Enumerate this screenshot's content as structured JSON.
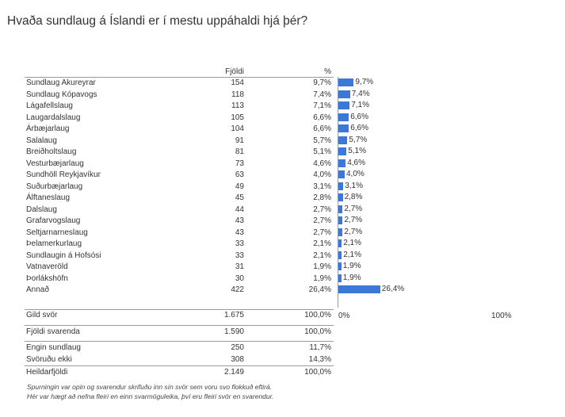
{
  "title": "Hvaða sundlaug á Íslandi er í mestu uppáhaldi hjá þér?",
  "headers": {
    "count": "Fjöldi",
    "pct": "%"
  },
  "rows": [
    {
      "label": "Sundlaug Akureyrar",
      "count": "154",
      "pct": "9,7%",
      "value": 9.7
    },
    {
      "label": "Sundlaug Kópavogs",
      "count": "118",
      "pct": "7,4%",
      "value": 7.4
    },
    {
      "label": "Lágafellslaug",
      "count": "113",
      "pct": "7,1%",
      "value": 7.1
    },
    {
      "label": "Laugardalslaug",
      "count": "105",
      "pct": "6,6%",
      "value": 6.6
    },
    {
      "label": "Árbæjarlaug",
      "count": "104",
      "pct": "6,6%",
      "value": 6.6
    },
    {
      "label": "Salalaug",
      "count": "91",
      "pct": "5,7%",
      "value": 5.7
    },
    {
      "label": "Breiðholtslaug",
      "count": "81",
      "pct": "5,1%",
      "value": 5.1
    },
    {
      "label": "Vesturbæjarlaug",
      "count": "73",
      "pct": "4,6%",
      "value": 4.6
    },
    {
      "label": "Sundhöll Reykjavíkur",
      "count": "63",
      "pct": "4,0%",
      "value": 4.0
    },
    {
      "label": "Suðurbæjarlaug",
      "count": "49",
      "pct": "3,1%",
      "value": 3.1
    },
    {
      "label": "Álftaneslaug",
      "count": "45",
      "pct": "2,8%",
      "value": 2.8
    },
    {
      "label": "Dalslaug",
      "count": "44",
      "pct": "2,7%",
      "value": 2.7
    },
    {
      "label": "Grafarvogslaug",
      "count": "43",
      "pct": "2,7%",
      "value": 2.7
    },
    {
      "label": "Seltjarnarneslaug",
      "count": "43",
      "pct": "2,7%",
      "value": 2.7
    },
    {
      "label": "Þelamerkurlaug",
      "count": "33",
      "pct": "2,1%",
      "value": 2.1
    },
    {
      "label": "Sundlaugin á Hofsósi",
      "count": "33",
      "pct": "2,1%",
      "value": 2.1
    },
    {
      "label": "Vatnaveröld",
      "count": "31",
      "pct": "1,9%",
      "value": 1.9
    },
    {
      "label": "Þorlákshöfn",
      "count": "30",
      "pct": "1,9%",
      "value": 1.9
    },
    {
      "label": "Annað",
      "count": "422",
      "pct": "26,4%",
      "value": 26.4
    }
  ],
  "totals": {
    "valid": {
      "label": "Gild svör",
      "count": "1.675",
      "pct": "100,0%"
    },
    "respondents": {
      "label": "Fjöldi svarenda",
      "count": "1.590",
      "pct": "100,0%"
    },
    "none": {
      "label": "Engin sundlaug",
      "count": "250",
      "pct": "11,7%"
    },
    "noanswer": {
      "label": "Svöruðu ekki",
      "count": "308",
      "pct": "14,3%"
    },
    "total": {
      "label": "Heildarfjöldi",
      "count": "2.149",
      "pct": "100,0%"
    }
  },
  "axis": {
    "min_label": "0%",
    "max_label": "100%"
  },
  "notes": [
    "Spurningin var opin og svarendur skrifuðu inn sín svör sem voru svo flokkuð eftirá.",
    "Hér var hægt að nefna fleiri en einn svarmöguleika, því eru fleiri svör en svarendur."
  ],
  "colors": {
    "bar": "#3c78d8"
  },
  "chart_data": {
    "type": "bar",
    "orientation": "horizontal",
    "categories": [
      "Sundlaug Akureyrar",
      "Sundlaug Kópavogs",
      "Lágafellslaug",
      "Laugardalslaug",
      "Árbæjarlaug",
      "Salalaug",
      "Breiðholtslaug",
      "Vesturbæjarlaug",
      "Sundhöll Reykjavíkur",
      "Suðurbæjarlaug",
      "Álftaneslaug",
      "Dalslaug",
      "Grafarvogslaug",
      "Seltjarnarneslaug",
      "Þelamerkurlaug",
      "Sundlaugin á Hofsósi",
      "Vatnaveröld",
      "Þorlákshöfn",
      "Annað"
    ],
    "values": [
      9.7,
      7.4,
      7.1,
      6.6,
      6.6,
      5.7,
      5.1,
      4.6,
      4.0,
      3.1,
      2.8,
      2.7,
      2.7,
      2.7,
      2.1,
      2.1,
      1.9,
      1.9,
      26.4
    ],
    "xlim": [
      0,
      100
    ],
    "grid": false
  }
}
